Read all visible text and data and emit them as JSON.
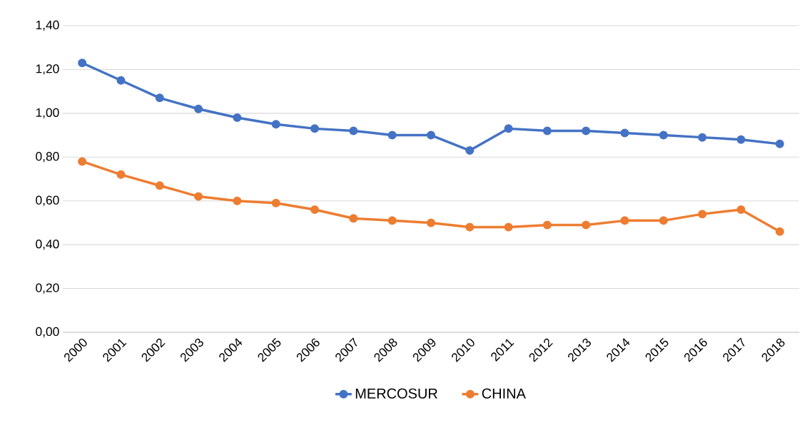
{
  "chart_data": {
    "type": "line",
    "categories": [
      "2000",
      "2001",
      "2002",
      "2003",
      "2004",
      "2005",
      "2006",
      "2007",
      "2008",
      "2009",
      "2010",
      "2011",
      "2012",
      "2013",
      "2014",
      "2015",
      "2016",
      "2017",
      "2018"
    ],
    "series": [
      {
        "name": "MERCOSUR",
        "color": "#4472c4",
        "values": [
          1.23,
          1.15,
          1.07,
          1.02,
          0.98,
          0.95,
          0.93,
          0.92,
          0.9,
          0.9,
          0.83,
          0.93,
          0.92,
          0.92,
          0.91,
          0.9,
          0.89,
          0.88,
          0.86
        ]
      },
      {
        "name": "CHINA",
        "color": "#ed7d31",
        "values": [
          0.78,
          0.72,
          0.67,
          0.62,
          0.6,
          0.59,
          0.56,
          0.52,
          0.51,
          0.5,
          0.48,
          0.48,
          0.49,
          0.49,
          0.51,
          0.51,
          0.54,
          0.56,
          0.46
        ]
      }
    ],
    "ylim": [
      0,
      1.4
    ],
    "yticks": [
      {
        "value": 0,
        "label": "0,00"
      },
      {
        "value": 0.2,
        "label": "0,20"
      },
      {
        "value": 0.4,
        "label": "0,40"
      },
      {
        "value": 0.6,
        "label": "0,60"
      },
      {
        "value": 0.8,
        "label": "0,80"
      },
      {
        "value": 1.0,
        "label": "1,00"
      },
      {
        "value": 1.2,
        "label": "1,20"
      },
      {
        "value": 1.4,
        "label": "1,40"
      }
    ],
    "grid": "y",
    "legend": "bottom",
    "marker": "circle",
    "line_style": "solid"
  }
}
